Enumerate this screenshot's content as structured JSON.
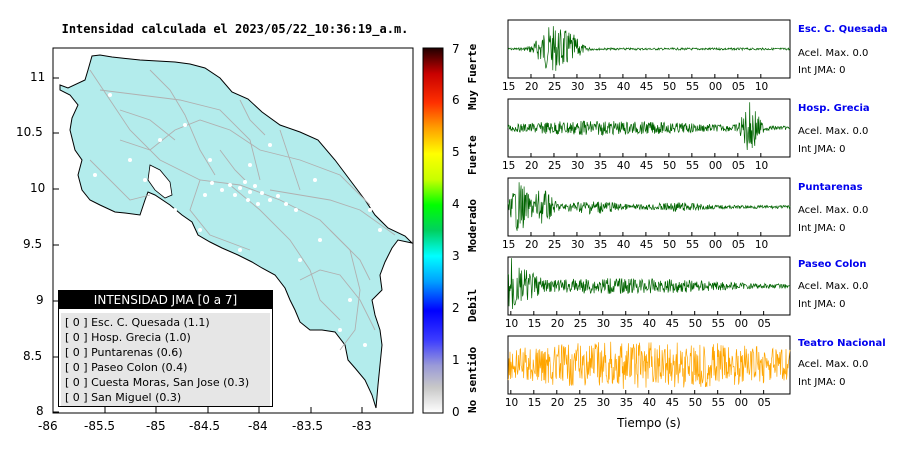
{
  "map": {
    "title": "Intensidad calculada el 2023/05/22_10:36:19_a.m.",
    "lon_ticks": [
      "-86",
      "-85.5",
      "-85",
      "-84.5",
      "-84",
      "-83.5",
      "-83"
    ],
    "lat_ticks": [
      "11",
      "10.5",
      "10",
      "9.5",
      "9",
      "8.5",
      "8"
    ],
    "land_color": "#b3ecec",
    "road_color": "#b0b0b0"
  },
  "colorbar": {
    "ticks": [
      "0",
      "1",
      "2",
      "3",
      "4",
      "5",
      "6",
      "7"
    ],
    "words": [
      "No sentido",
      "Debil",
      "Moderado",
      "Fuerte",
      "Muy Fuerte"
    ]
  },
  "legend": {
    "title": "INTENSIDAD JMA [0 a 7]",
    "rows": [
      "[ 0 ]  Esc. C. Quesada (1.1)",
      "[ 0 ]  Hosp. Grecia (1.0)",
      "[ 0 ]  Puntarenas (0.6)",
      "[ 0 ]  Paseo Colon (0.4)",
      "[ 0 ]  Cuesta Moras, San Jose (0.3)",
      "[ 0 ]  San Miguel (0.3)"
    ]
  },
  "stations": [
    {
      "name": "Esc. C. Quesada",
      "acel": "Acel. Max. 0.0",
      "int": "Int JMA: 0",
      "color": "#006400",
      "ticks": [
        "15",
        "20",
        "25",
        "30",
        "35",
        "40",
        "45",
        "50",
        "55",
        "00",
        "05",
        "10"
      ]
    },
    {
      "name": "Hosp. Grecia",
      "acel": "Acel. Max. 0.0",
      "int": "Int JMA: 0",
      "color": "#006400",
      "ticks": [
        "15",
        "20",
        "25",
        "30",
        "35",
        "40",
        "45",
        "50",
        "55",
        "00",
        "05",
        "10"
      ]
    },
    {
      "name": "Puntarenas",
      "acel": "Acel. Max. 0.0",
      "int": "Int JMA: 0",
      "color": "#006400",
      "ticks": [
        "15",
        "20",
        "25",
        "30",
        "35",
        "40",
        "45",
        "50",
        "55",
        "00",
        "05",
        "10"
      ]
    },
    {
      "name": "Paseo Colon",
      "acel": "Acel. Max. 0.0",
      "int": "Int JMA: 0",
      "color": "#006400",
      "ticks": [
        "10",
        "15",
        "20",
        "25",
        "30",
        "35",
        "40",
        "45",
        "50",
        "55",
        "00",
        "05"
      ]
    },
    {
      "name": "Teatro Nacional",
      "acel": "Acel. Max. 0.0",
      "int": "Int JMA: 0",
      "color": "#ffa500",
      "ticks": [
        "10",
        "15",
        "20",
        "25",
        "30",
        "35",
        "40",
        "45",
        "50",
        "55",
        "00",
        "05"
      ]
    }
  ],
  "chart_data": [
    {
      "type": "map",
      "title": "Intensidad calculada el 2023/05/22_10:36:19_a.m.",
      "xlim": [
        -86,
        -82.5
      ],
      "ylim": [
        8,
        11.3
      ],
      "legend_title": "INTENSIDAD JMA [0 a 7]",
      "stations": [
        {
          "name": "Esc. C. Quesada",
          "jma": 0,
          "value": 1.1
        },
        {
          "name": "Hosp. Grecia",
          "jma": 0,
          "value": 1.0
        },
        {
          "name": "Puntarenas",
          "jma": 0,
          "value": 0.6
        },
        {
          "name": "Paseo Colon",
          "jma": 0,
          "value": 0.4
        },
        {
          "name": "Cuesta Moras, San Jose",
          "jma": 0,
          "value": 0.3
        },
        {
          "name": "San Miguel",
          "jma": 0,
          "value": 0.3
        }
      ],
      "colorbar_range": [
        0,
        7
      ]
    },
    {
      "type": "line",
      "xlabel": "Tiempo (s)",
      "series": [
        {
          "name": "Esc. C. Quesada",
          "acel_max": 0.0,
          "int_jma": 0
        },
        {
          "name": "Hosp. Grecia",
          "acel_max": 0.0,
          "int_jma": 0
        },
        {
          "name": "Puntarenas",
          "acel_max": 0.0,
          "int_jma": 0
        },
        {
          "name": "Paseo Colon",
          "acel_max": 0.0,
          "int_jma": 0
        },
        {
          "name": "Teatro Nacional",
          "acel_max": 0.0,
          "int_jma": 0
        }
      ]
    }
  ],
  "xlabel": "Tiempo (s)"
}
